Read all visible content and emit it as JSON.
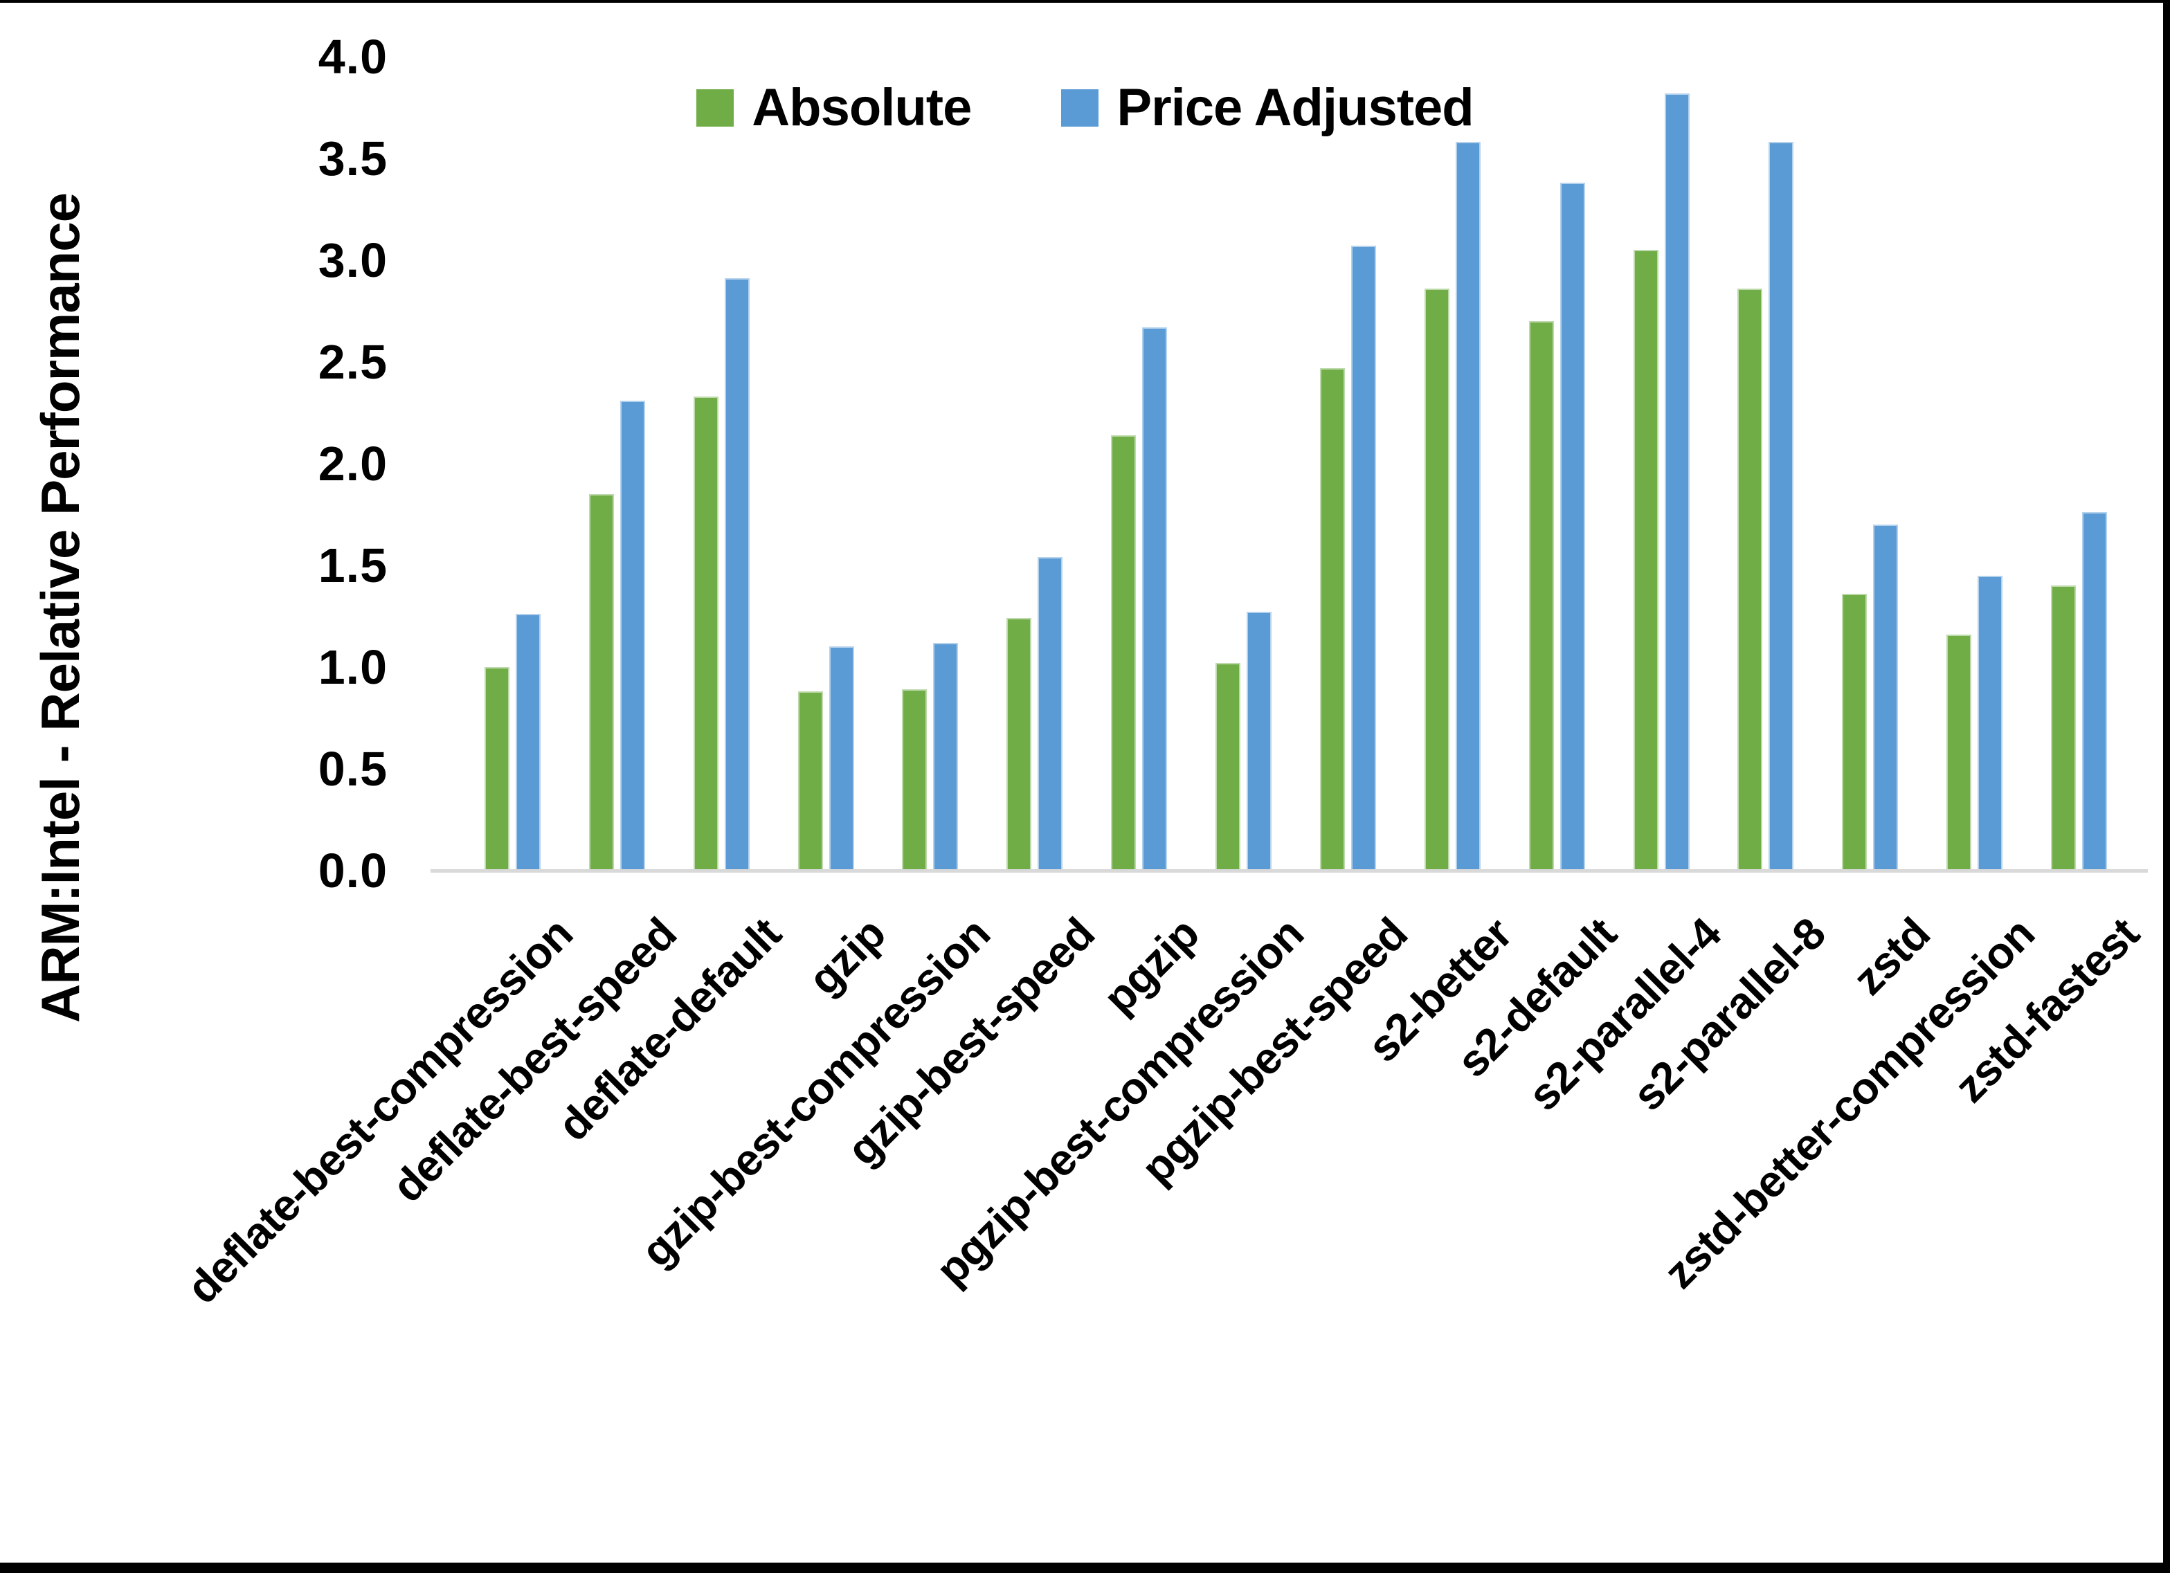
{
  "chart_data": {
    "type": "bar",
    "title": "",
    "ylabel": "ARM:Intel - Relative Performance",
    "xlabel": "",
    "ylim": [
      0.0,
      4.0
    ],
    "ytick_step": 0.5,
    "yticks": [
      "4.0",
      "3.5",
      "3.0",
      "2.5",
      "2.0",
      "1.5",
      "1.0",
      "0.5",
      "0.0"
    ],
    "grid": false,
    "legend_position": "top-center",
    "axis_line_color": "#D9D9D9",
    "frame_color": "#000000",
    "background_color": "#FFFFFF",
    "categories": [
      "deflate-best-compression",
      "deflate-best-speed",
      "deflate-default",
      "gzip",
      "gzip-best-compression",
      "gzip-best-speed",
      "pgzip",
      "pgzip-best-compression",
      "pgzip-best-speed",
      "s2-better",
      "s2-default",
      "s2-parallel-4",
      "s2-parallel-8",
      "zstd",
      "zstd-better-compression",
      "zstd-fastest"
    ],
    "series": [
      {
        "name": "Absolute",
        "color": "#70AD47",
        "values": [
          1.0,
          1.85,
          2.33,
          0.88,
          0.89,
          1.24,
          2.14,
          1.02,
          2.47,
          2.86,
          2.7,
          3.05,
          2.86,
          1.36,
          1.16,
          1.4
        ]
      },
      {
        "name": "Price Adjusted",
        "color": "#5B9BD5",
        "values": [
          1.26,
          2.31,
          2.91,
          1.1,
          1.12,
          1.54,
          2.67,
          1.27,
          3.07,
          3.58,
          3.38,
          3.82,
          3.58,
          1.7,
          1.45,
          1.76
        ]
      }
    ]
  }
}
